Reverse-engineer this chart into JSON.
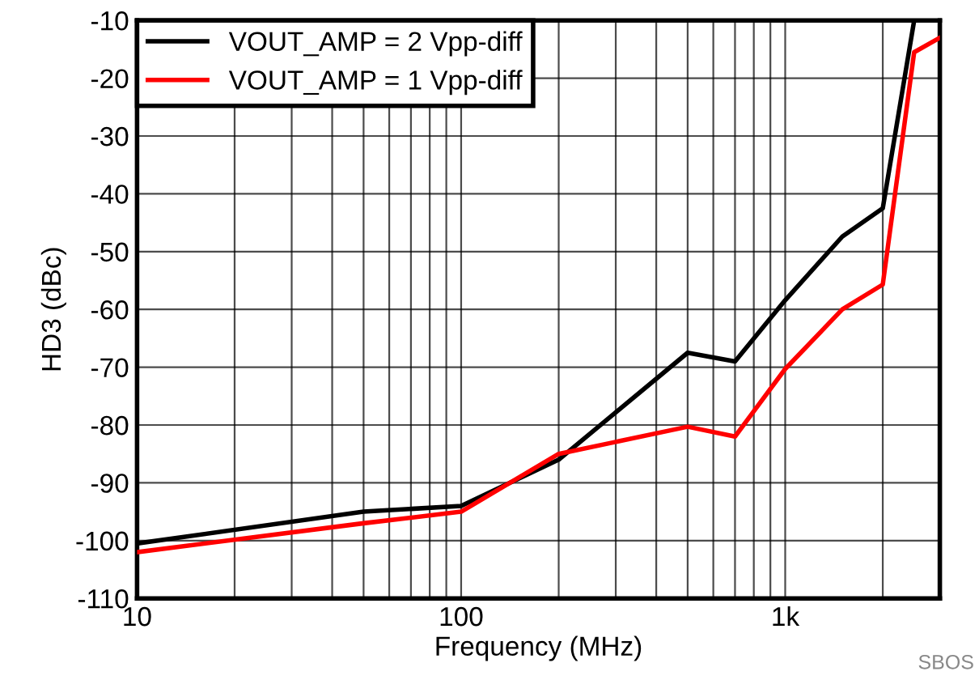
{
  "chart_data": {
    "type": "line",
    "xlabel": "Frequency (MHz)",
    "ylabel": "HD3 (dBc)",
    "log": "x",
    "grid": true,
    "legend": "top left",
    "marker": "none",
    "line_style": "solid",
    "xlim": [
      10,
      3000
    ],
    "xticks": [
      10,
      100,
      {
        "value": 1000,
        "label": "1k"
      }
    ],
    "ylim": [
      -110,
      -10
    ],
    "yticks": [
      -110,
      -100,
      -90,
      -80,
      -70,
      -60,
      -50,
      -40,
      -30,
      -20,
      -10
    ],
    "series": [
      {
        "name": "VOUT_AMP = 2 Vpp-diff",
        "color": "#000000",
        "x": [
          10,
          50,
          100,
          200,
          500,
          700,
          1000,
          1500,
          2000,
          2500
        ],
        "values": [
          -100.5,
          -95,
          -94,
          -86,
          -67.5,
          -69,
          -58.4,
          -47.4,
          -42.5,
          -10
        ]
      },
      {
        "name": "VOUT_AMP = 1 Vpp-diff",
        "color": "#ff0000",
        "x": [
          10,
          50,
          100,
          200,
          500,
          700,
          1000,
          1500,
          2000,
          2500,
          3000
        ],
        "values": [
          -102,
          -97,
          -95,
          -85,
          -80.3,
          -82,
          -70.3,
          -60,
          -55.7,
          -15.5,
          -13
        ]
      }
    ],
    "annotations": [
      "SBOS"
    ]
  }
}
